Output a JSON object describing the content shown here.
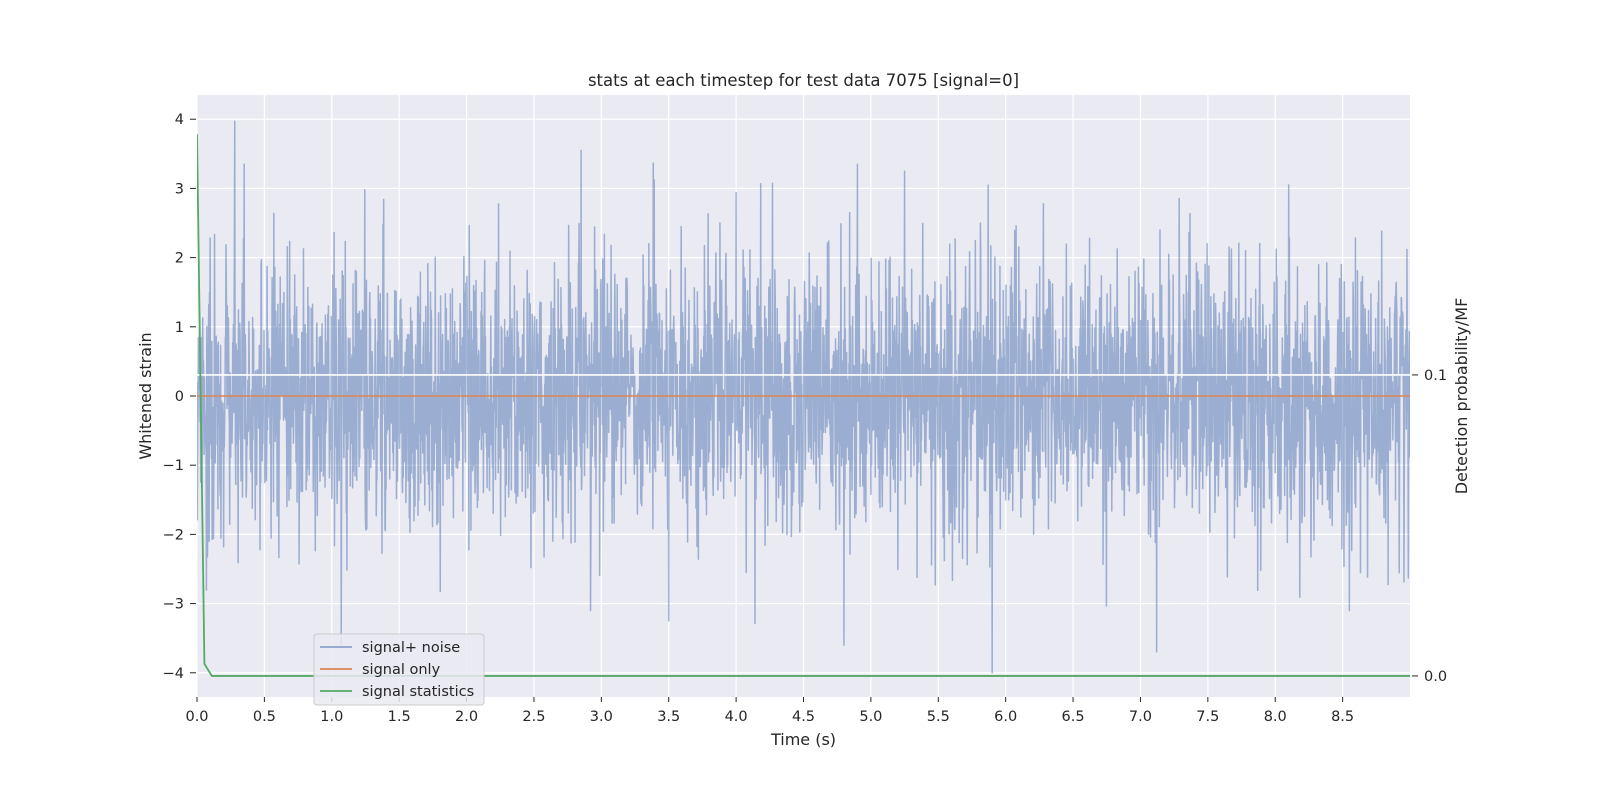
{
  "chart_data": {
    "type": "line",
    "title": "stats at each timestep for test data 7075 [signal=0]",
    "xlabel": "Time (s)",
    "ylabel": "Whitened strain",
    "ylabel_right": "Detection probability/MF",
    "xlim": [
      0.0,
      9.0
    ],
    "ylim": [
      -4.35,
      4.35
    ],
    "ylim_right": [
      -0.007,
      0.193
    ],
    "x_ticks": [
      "0.0",
      "0.5",
      "1.0",
      "1.5",
      "2.0",
      "2.5",
      "3.0",
      "3.5",
      "4.0",
      "4.5",
      "5.0",
      "5.5",
      "6.0",
      "6.5",
      "7.0",
      "7.5",
      "8.0",
      "8.5"
    ],
    "y_ticks": [
      "−4",
      "−3",
      "−2",
      "−1",
      "0",
      "1",
      "2",
      "3",
      "4"
    ],
    "y_ticks_right": [
      "0.0",
      "0.1"
    ],
    "grid": true,
    "legend_position": "lower-left",
    "series": [
      {
        "name": "signal+ noise",
        "color": "#4c72b0",
        "axis": "left",
        "description_values": {
          "typical_amplitude": 1.0,
          "max": 3.97,
          "min": -4.0,
          "peaks": [
            [
              0.28,
              3.97
            ],
            [
              0.35,
              3.35
            ],
            [
              2.85,
              3.55
            ],
            [
              4.9,
              3.35
            ],
            [
              5.25,
              3.25
            ],
            [
              5.87,
              3.05
            ],
            [
              8.1,
              3.05
            ]
          ],
          "troughs": [
            [
              1.07,
              -3.6
            ],
            [
              2.92,
              -3.1
            ],
            [
              3.5,
              -3.25
            ],
            [
              4.8,
              -3.6
            ],
            [
              5.9,
              -4.0
            ],
            [
              7.12,
              -3.7
            ],
            [
              8.55,
              -3.1
            ]
          ]
        }
      },
      {
        "name": "signal only",
        "color": "#dd8452",
        "axis": "left",
        "x": [
          0.0,
          9.0
        ],
        "y": [
          0.0,
          0.0
        ]
      },
      {
        "name": "signal statistics",
        "color": "#55a868",
        "axis": "right",
        "x": [
          0.0,
          0.055,
          0.11,
          9.0
        ],
        "y": [
          0.18,
          0.004,
          0.0,
          0.0
        ]
      }
    ],
    "annotations": [
      {
        "type": "hline",
        "axis": "right",
        "y": 0.1,
        "color": "#ffffff"
      }
    ]
  }
}
